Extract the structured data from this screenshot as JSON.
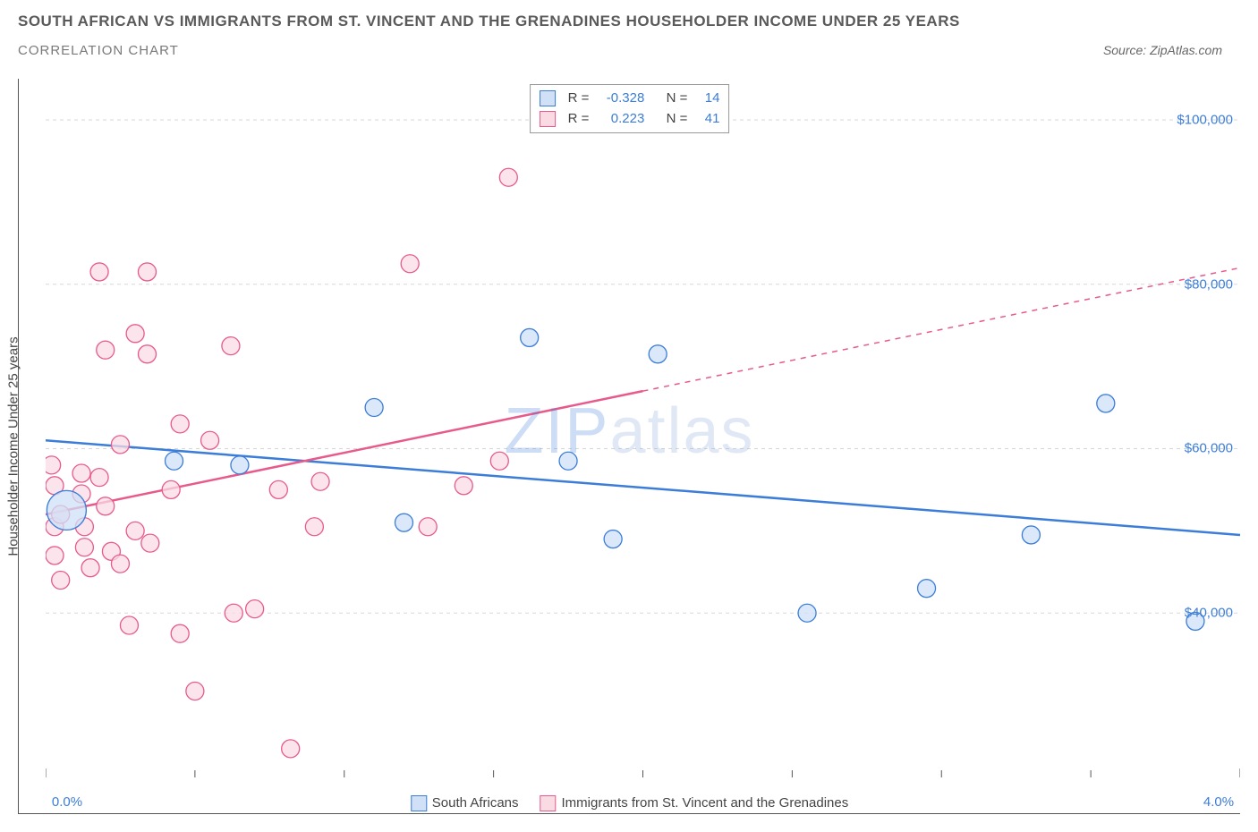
{
  "title": "SOUTH AFRICAN VS IMMIGRANTS FROM ST. VINCENT AND THE GRENADINES HOUSEHOLDER INCOME UNDER 25 YEARS",
  "subtitle": "CORRELATION CHART",
  "source_label": "Source:",
  "source_value": "ZipAtlas.com",
  "ylabel": "Householder Income Under 25 years",
  "watermark_a": "ZIP",
  "watermark_b": "atlas",
  "chart": {
    "type": "scatter",
    "xlim": [
      0.0,
      4.0
    ],
    "ylim": [
      20000,
      105000
    ],
    "xtick_labels": [
      "0.0%",
      "4.0%"
    ],
    "xtick_positions": [
      0.0,
      4.0
    ],
    "xtick_minor": [
      0.5,
      1.0,
      1.5,
      2.0,
      2.5,
      3.0,
      3.5
    ],
    "ytick_labels": [
      "$40,000",
      "$60,000",
      "$80,000",
      "$100,000"
    ],
    "ytick_positions": [
      40000,
      60000,
      80000,
      100000
    ],
    "grid_color": "#d7d7d7",
    "grid_dash": "4,4",
    "background_color": "#ffffff",
    "series": [
      {
        "name": "South Africans",
        "color_fill": "#cfe0f7",
        "color_stroke": "#3b7dd8",
        "marker_radius": 10,
        "stats": {
          "R": "-0.328",
          "N": "14"
        },
        "trend": {
          "x1": 0.0,
          "y1": 61000,
          "x2": 4.0,
          "y2": 49500,
          "solid_until_x": 4.0
        },
        "points": [
          {
            "x": 0.07,
            "y": 52500,
            "r": 22
          },
          {
            "x": 0.43,
            "y": 58500
          },
          {
            "x": 0.65,
            "y": 58000
          },
          {
            "x": 1.1,
            "y": 65000
          },
          {
            "x": 1.2,
            "y": 51000
          },
          {
            "x": 1.75,
            "y": 58500
          },
          {
            "x": 1.62,
            "y": 73500
          },
          {
            "x": 1.9,
            "y": 49000
          },
          {
            "x": 2.05,
            "y": 71500
          },
          {
            "x": 2.55,
            "y": 40000
          },
          {
            "x": 2.95,
            "y": 43000
          },
          {
            "x": 3.3,
            "y": 49500
          },
          {
            "x": 3.55,
            "y": 65500
          },
          {
            "x": 3.85,
            "y": 39000
          }
        ]
      },
      {
        "name": "Immigrants from St. Vincent and the Grenadines",
        "color_fill": "#fadbe4",
        "color_stroke": "#e75a8b",
        "marker_radius": 10,
        "stats": {
          "R": "0.223",
          "N": "41"
        },
        "trend": {
          "x1": 0.0,
          "y1": 52000,
          "x2": 4.0,
          "y2": 82000,
          "solid_until_x": 2.0
        },
        "points": [
          {
            "x": 0.02,
            "y": 58000
          },
          {
            "x": 0.03,
            "y": 55500
          },
          {
            "x": 0.03,
            "y": 50500
          },
          {
            "x": 0.03,
            "y": 47000
          },
          {
            "x": 0.05,
            "y": 52000
          },
          {
            "x": 0.05,
            "y": 44000
          },
          {
            "x": 0.12,
            "y": 57000
          },
          {
            "x": 0.12,
            "y": 54500
          },
          {
            "x": 0.13,
            "y": 50500
          },
          {
            "x": 0.13,
            "y": 48000
          },
          {
            "x": 0.15,
            "y": 45500
          },
          {
            "x": 0.18,
            "y": 81500
          },
          {
            "x": 0.18,
            "y": 56500
          },
          {
            "x": 0.2,
            "y": 72000
          },
          {
            "x": 0.2,
            "y": 53000
          },
          {
            "x": 0.22,
            "y": 47500
          },
          {
            "x": 0.25,
            "y": 46000
          },
          {
            "x": 0.25,
            "y": 60500
          },
          {
            "x": 0.28,
            "y": 38500
          },
          {
            "x": 0.3,
            "y": 74000
          },
          {
            "x": 0.3,
            "y": 50000
          },
          {
            "x": 0.34,
            "y": 81500
          },
          {
            "x": 0.34,
            "y": 71500
          },
          {
            "x": 0.35,
            "y": 48500
          },
          {
            "x": 0.42,
            "y": 55000
          },
          {
            "x": 0.45,
            "y": 37500
          },
          {
            "x": 0.45,
            "y": 63000
          },
          {
            "x": 0.5,
            "y": 30500
          },
          {
            "x": 0.55,
            "y": 61000
          },
          {
            "x": 0.62,
            "y": 72500
          },
          {
            "x": 0.63,
            "y": 40000
          },
          {
            "x": 0.7,
            "y": 40500
          },
          {
            "x": 0.78,
            "y": 55000
          },
          {
            "x": 0.82,
            "y": 23500
          },
          {
            "x": 0.9,
            "y": 50500
          },
          {
            "x": 0.92,
            "y": 56000
          },
          {
            "x": 1.22,
            "y": 82500
          },
          {
            "x": 1.28,
            "y": 50500
          },
          {
            "x": 1.4,
            "y": 55500
          },
          {
            "x": 1.52,
            "y": 58500
          },
          {
            "x": 1.55,
            "y": 93000
          }
        ]
      }
    ],
    "bottom_legend": [
      {
        "label": "South Africans",
        "fill": "#cfe0f7",
        "stroke": "#3b7dd8"
      },
      {
        "label": "Immigrants from St. Vincent and the Grenadines",
        "fill": "#fadbe4",
        "stroke": "#e75a8b"
      }
    ],
    "stats_legend_labels": {
      "R": "R =",
      "N": "N ="
    }
  }
}
